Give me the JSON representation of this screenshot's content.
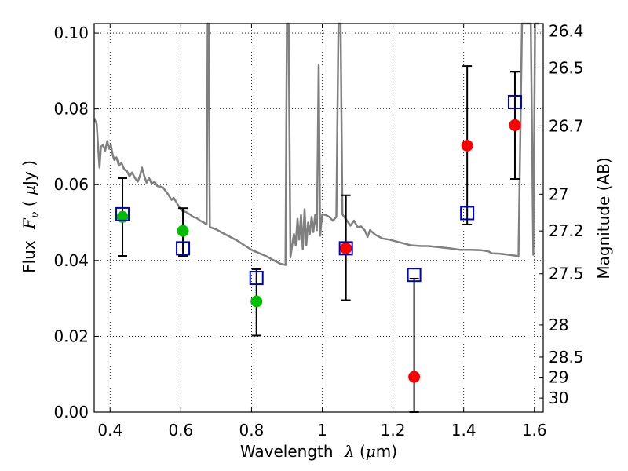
{
  "chart_data": {
    "type": "scatter",
    "xlabel": {
      "prefix": "Wavelength",
      "symbol": "λ",
      "unit_open": " (",
      "unit_mu": "μ",
      "unit_rest": "m)"
    },
    "ylabel": {
      "prefix": "Flux",
      "symbol": "F",
      "subscript": "ν",
      "unit_open": " ( ",
      "unit_mu": "μ",
      "unit_rest": "Jy )"
    },
    "y2label": "Magnitude (AB)",
    "xlim": [
      0.355,
      1.625
    ],
    "ylim": [
      0.0,
      0.1025
    ],
    "grid": true,
    "x_ticks": [
      {
        "value": 0.4,
        "label": "0.4"
      },
      {
        "value": 0.6,
        "label": "0.6"
      },
      {
        "value": 0.8,
        "label": "0.8"
      },
      {
        "value": 1.0,
        "label": "1"
      },
      {
        "value": 1.2,
        "label": "1.2"
      },
      {
        "value": 1.4,
        "label": "1.4"
      },
      {
        "value": 1.6,
        "label": "1.6"
      }
    ],
    "y_ticks": [
      {
        "value": 0.0,
        "label": "0.00"
      },
      {
        "value": 0.02,
        "label": "0.02"
      },
      {
        "value": 0.04,
        "label": "0.04"
      },
      {
        "value": 0.06,
        "label": "0.06"
      },
      {
        "value": 0.08,
        "label": "0.08"
      },
      {
        "value": 0.1,
        "label": "0.10"
      }
    ],
    "y2_ticks": [
      {
        "flux": 0.1005,
        "label": "26.4"
      },
      {
        "flux": 0.0908,
        "label": "26.5"
      },
      {
        "flux": 0.0755,
        "label": "26.7"
      },
      {
        "flux": 0.0575,
        "label": "27"
      },
      {
        "flux": 0.0478,
        "label": "27.2"
      },
      {
        "flux": 0.0365,
        "label": "27.5"
      },
      {
        "flux": 0.023,
        "label": "28"
      },
      {
        "flux": 0.0145,
        "label": "28.5"
      },
      {
        "flux": 0.0092,
        "label": "29"
      },
      {
        "flux": 0.0037,
        "label": "30"
      }
    ],
    "series": [
      {
        "marker": "circle",
        "color": "#00bf00",
        "points": [
          {
            "x": 0.435,
            "y": 0.0515
          },
          {
            "x": 0.606,
            "y": 0.0478
          },
          {
            "x": 0.814,
            "y": 0.0292
          }
        ]
      },
      {
        "marker": "circle",
        "color": "#ff0000",
        "points": [
          {
            "x": 1.067,
            "y": 0.0432
          },
          {
            "x": 1.26,
            "y": 0.0093
          },
          {
            "x": 1.41,
            "y": 0.0703
          },
          {
            "x": 1.545,
            "y": 0.0757
          }
        ]
      },
      {
        "marker": "square",
        "color": "#0000cc",
        "points": [
          {
            "x": 0.435,
            "y": 0.0522
          },
          {
            "x": 0.606,
            "y": 0.0432
          },
          {
            "x": 0.814,
            "y": 0.0354
          },
          {
            "x": 1.067,
            "y": 0.0432
          },
          {
            "x": 1.26,
            "y": 0.0362
          },
          {
            "x": 1.41,
            "y": 0.0525
          },
          {
            "x": 1.545,
            "y": 0.0818
          }
        ]
      }
    ],
    "errorbars": [
      {
        "x": 0.435,
        "low": 0.0412,
        "high": 0.0617
      },
      {
        "x": 0.606,
        "low": 0.0412,
        "high": 0.0538
      },
      {
        "x": 0.814,
        "low": 0.0202,
        "high": 0.0377
      },
      {
        "x": 1.067,
        "low": 0.0295,
        "high": 0.0572
      },
      {
        "x": 1.26,
        "low": 0.0,
        "high": 0.0352
      },
      {
        "x": 1.41,
        "low": 0.0495,
        "high": 0.0913
      },
      {
        "x": 1.545,
        "low": 0.0615,
        "high": 0.0898
      }
    ],
    "model_spectrum": {
      "color": "#808080",
      "points": [
        [
          0.355,
          0.0775
        ],
        [
          0.362,
          0.076
        ],
        [
          0.366,
          0.07
        ],
        [
          0.37,
          0.0645
        ],
        [
          0.374,
          0.07
        ],
        [
          0.38,
          0.0705
        ],
        [
          0.386,
          0.069
        ],
        [
          0.392,
          0.0715
        ],
        [
          0.397,
          0.0695
        ],
        [
          0.402,
          0.0705
        ],
        [
          0.407,
          0.068
        ],
        [
          0.412,
          0.0665
        ],
        [
          0.418,
          0.0672
        ],
        [
          0.425,
          0.065
        ],
        [
          0.432,
          0.0658
        ],
        [
          0.44,
          0.064
        ],
        [
          0.448,
          0.0635
        ],
        [
          0.455,
          0.0622
        ],
        [
          0.462,
          0.0632
        ],
        [
          0.47,
          0.0618
        ],
        [
          0.478,
          0.0608
        ],
        [
          0.485,
          0.0625
        ],
        [
          0.49,
          0.0645
        ],
        [
          0.496,
          0.0625
        ],
        [
          0.503,
          0.0605
        ],
        [
          0.51,
          0.0618
        ],
        [
          0.518,
          0.0602
        ],
        [
          0.526,
          0.0608
        ],
        [
          0.534,
          0.0596
        ],
        [
          0.542,
          0.0595
        ],
        [
          0.55,
          0.0592
        ],
        [
          0.558,
          0.0582
        ],
        [
          0.566,
          0.0572
        ],
        [
          0.574,
          0.056
        ],
        [
          0.58,
          0.0565
        ],
        [
          0.588,
          0.0553
        ],
        [
          0.596,
          0.054
        ],
        [
          0.605,
          0.053
        ],
        [
          0.615,
          0.0528
        ],
        [
          0.625,
          0.0522
        ],
        [
          0.635,
          0.0515
        ],
        [
          0.645,
          0.0512
        ],
        [
          0.655,
          0.0505
        ],
        [
          0.665,
          0.05
        ],
        [
          0.673,
          0.0495
        ],
        [
          0.676,
          0.1025
        ],
        [
          0.679,
          0.1025
        ],
        [
          0.682,
          0.0488
        ],
        [
          0.7,
          0.0482
        ],
        [
          0.72,
          0.0472
        ],
        [
          0.74,
          0.0462
        ],
        [
          0.76,
          0.0452
        ],
        [
          0.78,
          0.044
        ],
        [
          0.8,
          0.0428
        ],
        [
          0.82,
          0.042
        ],
        [
          0.84,
          0.0412
        ],
        [
          0.86,
          0.0402
        ],
        [
          0.88,
          0.0392
        ],
        [
          0.896,
          0.0388
        ],
        [
          0.9,
          0.1025
        ],
        [
          0.905,
          0.1025
        ],
        [
          0.91,
          0.0408
        ],
        [
          0.915,
          0.044
        ],
        [
          0.92,
          0.047
        ],
        [
          0.925,
          0.044
        ],
        [
          0.93,
          0.051
        ],
        [
          0.935,
          0.0455
        ],
        [
          0.94,
          0.052
        ],
        [
          0.945,
          0.043
        ],
        [
          0.95,
          0.0535
        ],
        [
          0.955,
          0.044
        ],
        [
          0.96,
          0.05
        ],
        [
          0.965,
          0.047
        ],
        [
          0.97,
          0.0515
        ],
        [
          0.975,
          0.0475
        ],
        [
          0.98,
          0.052
        ],
        [
          0.985,
          0.048
        ],
        [
          0.99,
          0.0915
        ],
        [
          0.994,
          0.0465
        ],
        [
          1.0,
          0.0522
        ],
        [
          1.01,
          0.052
        ],
        [
          1.02,
          0.0515
        ],
        [
          1.03,
          0.0505
        ],
        [
          1.04,
          0.0515
        ],
        [
          1.046,
          0.1025
        ],
        [
          1.052,
          0.1025
        ],
        [
          1.057,
          0.0522
        ],
        [
          1.07,
          0.0505
        ],
        [
          1.08,
          0.0492
        ],
        [
          1.09,
          0.0505
        ],
        [
          1.1,
          0.0488
        ],
        [
          1.11,
          0.049
        ],
        [
          1.12,
          0.048
        ],
        [
          1.128,
          0.0462
        ],
        [
          1.135,
          0.048
        ],
        [
          1.15,
          0.0468
        ],
        [
          1.17,
          0.0458
        ],
        [
          1.19,
          0.0455
        ],
        [
          1.21,
          0.045
        ],
        [
          1.23,
          0.0445
        ],
        [
          1.25,
          0.044
        ],
        [
          1.28,
          0.0438
        ],
        [
          1.3,
          0.0438
        ],
        [
          1.33,
          0.0435
        ],
        [
          1.36,
          0.0432
        ],
        [
          1.39,
          0.0428
        ],
        [
          1.42,
          0.0428
        ],
        [
          1.45,
          0.0427
        ],
        [
          1.47,
          0.0424
        ],
        [
          1.48,
          0.0419
        ],
        [
          1.5,
          0.0418
        ],
        [
          1.52,
          0.0416
        ],
        [
          1.545,
          0.0413
        ],
        [
          1.555,
          0.041
        ],
        [
          1.565,
          0.1025
        ],
        [
          1.57,
          0.1025
        ],
        [
          1.59,
          0.1025
        ],
        [
          1.597,
          0.0415
        ],
        [
          1.602,
          0.1025
        ],
        [
          1.612,
          0.1025
        ]
      ]
    }
  }
}
